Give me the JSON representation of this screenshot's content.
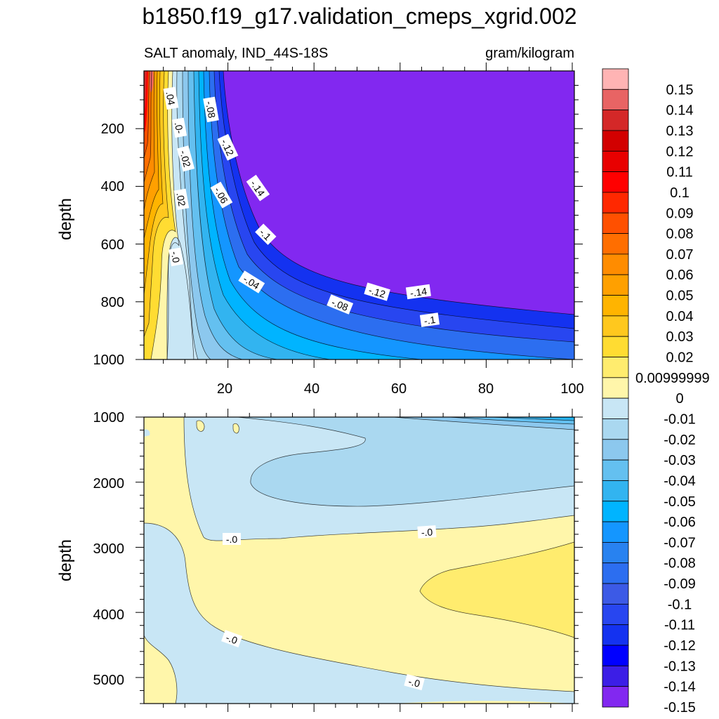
{
  "chart_data": {
    "type": "heatmap",
    "title": "b1850.f19_g17.validation_cmeps_xgrid.002",
    "subtitle_left": "SALT anomaly, IND_44S-18S",
    "subtitle_right": "gram/kilogram",
    "ylabel": "depth",
    "x_tick_labels": [
      "20",
      "40",
      "60",
      "80",
      "100"
    ],
    "top_panel": {
      "ylim": [
        0,
        1000
      ],
      "xlim": [
        0,
        100
      ],
      "y_tick_labels": [
        "200",
        "400",
        "600",
        "800",
        "1000"
      ],
      "contour_labels": [
        {
          "text": ".04",
          "x": 6.5,
          "y": 90
        },
        {
          "text": "-.08",
          "x": 15.5,
          "y": 175
        },
        {
          "text": ".0-",
          "x": 8,
          "y": 240
        },
        {
          "text": "-.12",
          "x": 19.5,
          "y": 265
        },
        {
          "text": "-.02",
          "x": 9.5,
          "y": 315
        },
        {
          "text": "-.14",
          "x": 26.5,
          "y": 405
        },
        {
          "text": "-.06",
          "x": 18,
          "y": 420
        },
        {
          "text": ".02",
          "x": 8.5,
          "y": 465
        },
        {
          "text": "-.1",
          "x": 28.5,
          "y": 570
        },
        {
          "text": "-.0",
          "x": 7.5,
          "y": 660
        },
        {
          "text": "-.04",
          "x": 25,
          "y": 755
        },
        {
          "text": "-.12",
          "x": 54,
          "y": 780
        },
        {
          "text": "-.14",
          "x": 63,
          "y": 770
        },
        {
          "text": "-.08",
          "x": 45.5,
          "y": 825
        },
        {
          "text": "-.1",
          "x": 66,
          "y": 880
        }
      ]
    },
    "bottom_panel": {
      "ylim": [
        1000,
        5400
      ],
      "xlim": [
        0,
        100
      ],
      "y_tick_labels": [
        "1000",
        "2000",
        "3000",
        "4000",
        "5000"
      ],
      "contour_labels": [
        {
          "text": "-.0",
          "x": 20.5,
          "y": 2900
        },
        {
          "text": "-.0",
          "x": 65,
          "y": 2780
        },
        {
          "text": "-.0",
          "x": 20.5,
          "y": 4400
        },
        {
          "text": "-.0",
          "x": 63,
          "y": 5050
        }
      ]
    },
    "colorbar": {
      "labels": [
        "0.15",
        "0.14",
        "0.13",
        "0.12",
        "0.11",
        "0.1",
        "0.09",
        "0.08",
        "0.07",
        "0.06",
        "0.05",
        "0.04",
        "0.03",
        "0.02",
        "0.00999999",
        "0",
        "-0.01",
        "-0.02",
        "-0.03",
        "-0.04",
        "-0.05",
        "-0.06",
        "-0.07",
        "-0.08",
        "-0.09",
        "-0.1",
        "-0.11",
        "-0.12",
        "-0.13",
        "-0.14",
        "-0.15"
      ],
      "colors": [
        "#ffb4b4",
        "#e86464",
        "#d42828",
        "#d20000",
        "#e80000",
        "#ff0000",
        "#ff2800",
        "#ff5000",
        "#ff6e00",
        "#ff8c00",
        "#ffa000",
        "#ffb400",
        "#ffc81e",
        "#ffdc32",
        "#ffec6e",
        "#fff6aa",
        "#c8e6f5",
        "#aad8f0",
        "#8cc8ee",
        "#64c0f0",
        "#32b4f0",
        "#00b4ff",
        "#1496ff",
        "#2882f0",
        "#2c6ef0",
        "#3c5ae6",
        "#2846f0",
        "#1432f0",
        "#0000ff",
        "#3c1ee6",
        "#8228f0"
      ]
    }
  }
}
